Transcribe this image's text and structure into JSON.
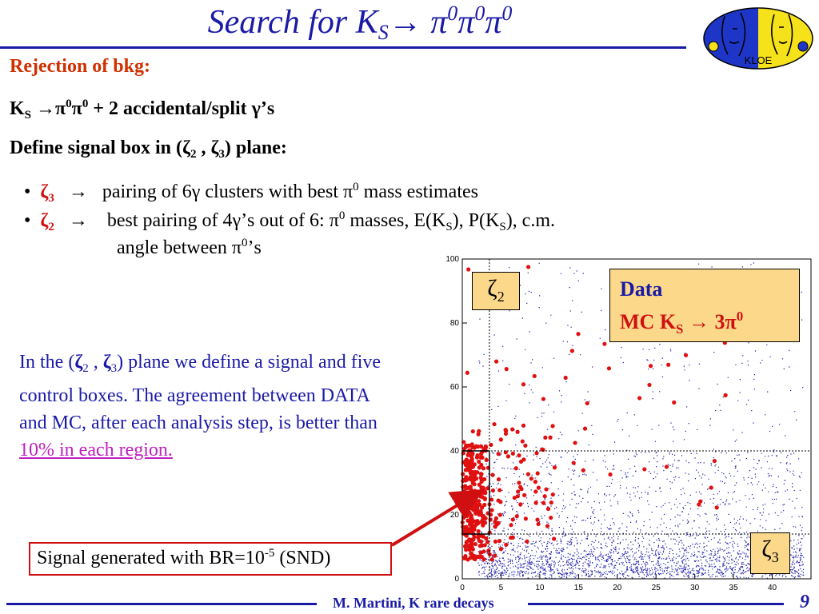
{
  "title": {
    "prefix": "Search for K",
    "sub": "S",
    "arrow": "→",
    "pi1": "π",
    "sup1": "0",
    "pi2": "π",
    "sup2": "0",
    "pi3": "π",
    "sup3": "0"
  },
  "logo": {
    "text": "KLOE"
  },
  "rejection": "Rejection of bkg:",
  "line1": {
    "k": "K",
    "ksub": "S",
    "rest1": " →π",
    "sup1": "0",
    "pi": "π",
    "sup2": "0",
    "rest2": " + 2 accidental/split γ’s"
  },
  "line2": {
    "a": "Define signal box in (",
    "z2": "ζ",
    "z2sub": "2",
    "comma": " ,  ",
    "z3": "ζ",
    "z3sub": "3",
    "b": ") plane:"
  },
  "bullets": [
    {
      "bullet": "•",
      "zeta": "ζ",
      "sub": "3",
      "arrow": "→",
      "t1": "pairing of 6γ clusters with best π",
      "sup": "0",
      "t2": " mass estimates"
    },
    {
      "bullet": "•",
      "zeta": "ζ",
      "sub": "2",
      "arrow": "→",
      "t1": "best pairing of 4γ’s out of 6: π",
      "sup": "0",
      "t2": " masses, E(K",
      "s1": "S",
      "t3": "), P(K",
      "s2": "S",
      "t4": "), c.m.",
      "cont1": "angle between π",
      "csup": "0",
      "cont2": "’s"
    }
  ],
  "paragraph": {
    "t1": "In the (",
    "z2": "ζ",
    "z2sub": "2",
    "t2": " , ",
    "z3": "ζ",
    "z3sub": "3",
    "t3": ") plane we define a signal and five control boxes. The agreement between DATA and MC, after each analysis step, is better than ",
    "link": "10% in each region."
  },
  "legend": {
    "data": "Data",
    "mc": "MC K",
    "mcsub": "S",
    "arrow": " → 3π",
    "sup": "0"
  },
  "zeta2_label": {
    "z": "ζ",
    "sub": "2"
  },
  "zeta3_label": {
    "z": "ζ",
    "sub": "3"
  },
  "signal_box": {
    "t1": "Signal generated with BR=10",
    "sup": "-5",
    "t2": " (SND)"
  },
  "footer": {
    "text": "M. Martini, K rare decays",
    "page": "9"
  },
  "colors": {
    "blue": "#1a1aa6",
    "red": "#d01010",
    "orange": "#d03000",
    "legend_bg": "#fcd98a",
    "logo_blue": "#1e36c8",
    "logo_yellow": "#f5e21a"
  },
  "chart_data": {
    "type": "scatter",
    "xlim": [
      0,
      45
    ],
    "ylim": [
      0,
      100
    ],
    "x_ticks": [
      0,
      5,
      10,
      15,
      20,
      25,
      30,
      35,
      40
    ],
    "y_ticks": [
      0,
      20,
      40,
      60,
      80,
      100
    ],
    "grid": false,
    "box_lines": {
      "x": [
        0,
        3.5
      ],
      "y": [
        14,
        40
      ]
    },
    "series": [
      {
        "name": "Data",
        "color": "#1a1aa6",
        "marker": "dot"
      },
      {
        "name": "MC K_S → 3π0",
        "color": "#d01010",
        "marker": "circle"
      }
    ]
  }
}
